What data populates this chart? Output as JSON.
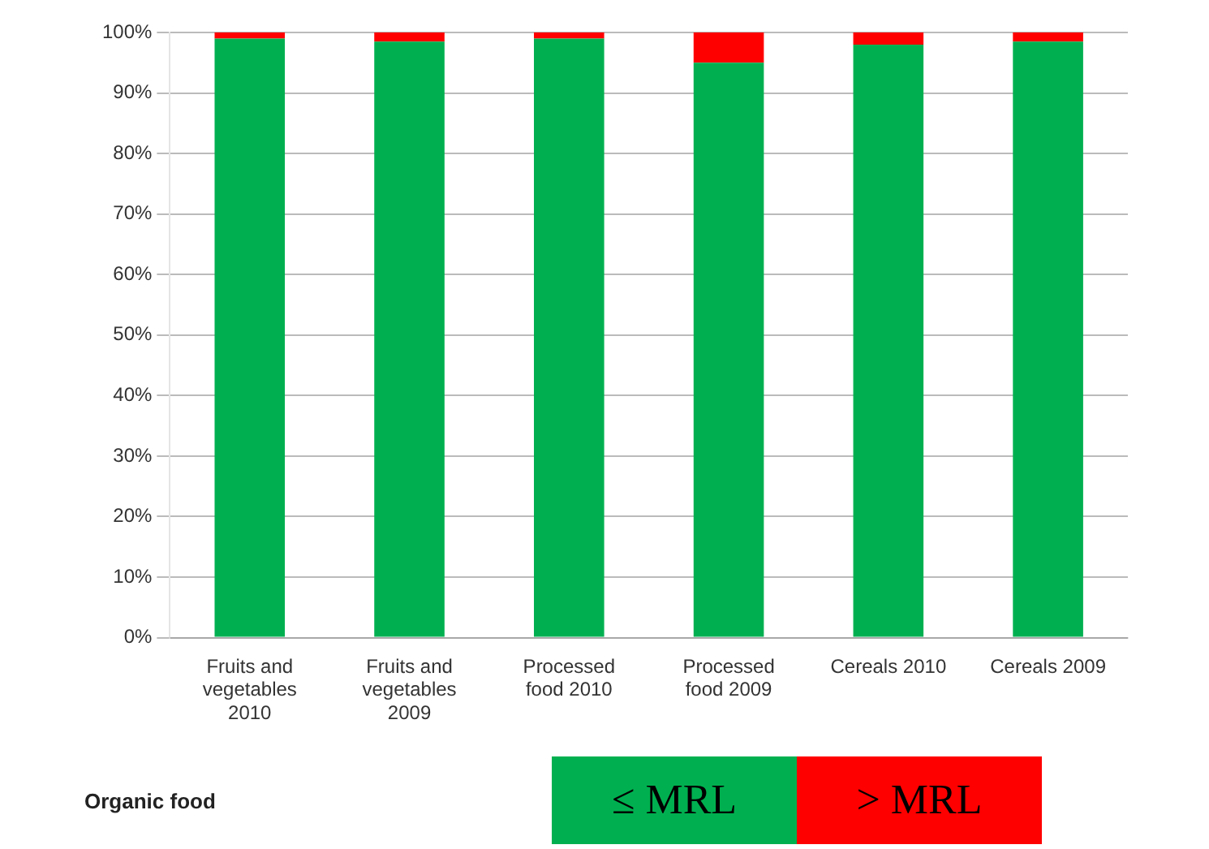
{
  "chart_data": {
    "type": "bar",
    "stacked": true,
    "categories": [
      "Fruits and vegetables 2010",
      "Fruits and vegetables 2009",
      "Processed food 2010",
      "Processed food 2009",
      "Cereals 2010",
      "Cereals 2009"
    ],
    "series": [
      {
        "name": "≤ MRL",
        "color": "#00b050",
        "values": [
          99,
          98.5,
          99,
          95,
          98,
          98.5
        ]
      },
      {
        "name": "> MRL",
        "color": "#ff0000",
        "values": [
          1,
          1.5,
          1,
          5,
          2,
          1.5
        ]
      }
    ],
    "ylim": [
      0,
      100
    ],
    "yticks": [
      {
        "value": 0,
        "label": "0%"
      },
      {
        "value": 10,
        "label": "10%"
      },
      {
        "value": 20,
        "label": "20%"
      },
      {
        "value": 30,
        "label": "30%"
      },
      {
        "value": 40,
        "label": "40%"
      },
      {
        "value": 50,
        "label": "50%"
      },
      {
        "value": 60,
        "label": "60%"
      },
      {
        "value": 70,
        "label": "70%"
      },
      {
        "value": 80,
        "label": "80%"
      },
      {
        "value": 90,
        "label": "90%"
      },
      {
        "value": 100,
        "label": "100%"
      }
    ],
    "grid": "y",
    "legend": "bottom",
    "annotations": [
      "Organic food"
    ]
  }
}
